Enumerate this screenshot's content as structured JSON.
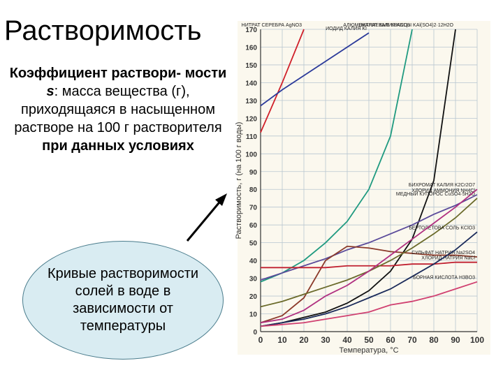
{
  "title": "Растворимость",
  "definition": [
    {
      "text": "Коэффициент раствори- мости ",
      "bold": true,
      "italic": false
    },
    {
      "text": "s",
      "bold": true,
      "italic": true
    },
    {
      "text": ": масса вещества (г), приходящаяся в насыщенном растворе на 100 г растворителя ",
      "bold": false,
      "italic": false
    },
    {
      "text": "при данных условиях",
      "bold": true,
      "italic": false
    }
  ],
  "bubble": "Кривые растворимости солей в воде в зависимости от температуры",
  "chart_data": {
    "type": "line",
    "x_label": "Температура, °С",
    "y_label": "Растворимость, г (на 100 г воды)",
    "x": [
      0,
      10,
      20,
      30,
      40,
      50,
      60,
      70,
      80,
      90,
      100
    ],
    "xlim": [
      0,
      100
    ],
    "xticks": [
      0,
      10,
      20,
      30,
      40,
      50,
      60,
      70,
      80,
      90,
      100
    ],
    "ylim": [
      0,
      170
    ],
    "yticks": [
      0,
      10,
      20,
      30,
      40,
      50,
      60,
      70,
      80,
      90,
      100,
      110,
      120,
      130,
      140,
      150,
      160,
      170
    ],
    "grid": true,
    "series": [
      {
        "name": "НИТРАТ СЕРЕБРА AgNO3",
        "color": "#d0202a",
        "values": [
          112,
          140,
          170,
          null,
          null,
          null,
          null,
          null,
          null,
          null,
          null
        ]
      },
      {
        "name": "ИОДИД КАЛИЯ KI",
        "color": "#2b3a9a",
        "values": [
          127,
          136,
          144,
          152,
          160,
          168,
          null,
          null,
          null,
          null,
          null
        ]
      },
      {
        "name": "НИТРАТ КАЛИЯ KNO3",
        "color": "#1f9a80",
        "values": [
          28,
          33,
          40,
          50,
          62,
          80,
          110,
          170,
          null,
          null,
          null
        ]
      },
      {
        "name": "АЛЮМОКАЛИЕВЫЕ КВАСЦЫ KAl(SO4)2·12H2O",
        "color": "#111111",
        "values": [
          3,
          5,
          8,
          11,
          16,
          23,
          34,
          52,
          85,
          170,
          null
        ]
      },
      {
        "name": "ХЛОРИД АММОНИЯ NH4Cl",
        "color": "#5a4a9a",
        "values": [
          29,
          33,
          37,
          41,
          46,
          50,
          55,
          60,
          66,
          71,
          77
        ]
      },
      {
        "name": "СУЛЬФАТ НАТРИЯ Na2SO4",
        "color": "#8b3a2a",
        "values": [
          5,
          9,
          19,
          40,
          48,
          47,
          45,
          44,
          43,
          43,
          42
        ]
      },
      {
        "name": "ХЛОРИД НАТРИЯ NaCl",
        "color": "#c02030",
        "values": [
          36,
          36,
          36,
          36,
          37,
          37,
          37,
          38,
          38,
          39,
          39
        ]
      },
      {
        "name": "МЕДНЫЙ КУПОРОС CuSO4·5H2O",
        "color": "#6a6a2a",
        "values": [
          14,
          17,
          21,
          25,
          29,
          34,
          40,
          47,
          55,
          64,
          75
        ]
      },
      {
        "name": "БЕРТОЛЕТОВА СОЛЬ KClO3",
        "color": "#1a2a5a",
        "values": [
          3,
          5,
          7,
          10,
          14,
          19,
          24,
          31,
          38,
          46,
          56
        ]
      },
      {
        "name": "БИХРОМАТ КАЛИЯ K2Cr2O7",
        "color": "#b03080",
        "values": [
          5,
          7,
          12,
          20,
          26,
          34,
          43,
          52,
          61,
          70,
          80
        ]
      },
      {
        "name": "БОРНАЯ КИСЛОТА H3BO3",
        "color": "#d04070",
        "values": [
          3,
          4,
          5,
          7,
          9,
          11,
          15,
          17,
          20,
          24,
          28
        ]
      }
    ]
  }
}
